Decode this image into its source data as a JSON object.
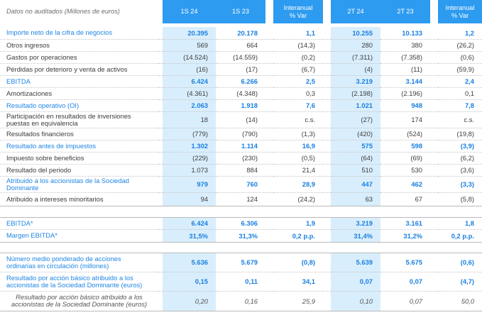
{
  "header": {
    "label": "Datos no auditados (Millones de euros)",
    "col_1s24": "1S 24",
    "col_1s23": "1S 23",
    "col_var1_line1": "Interanual",
    "col_var1_line2": "% Var",
    "col_2t24": "2T 24",
    "col_2t23": "2T 23",
    "col_var2_line1": "Interanual",
    "col_var2_line2": "% Var"
  },
  "rows": [
    {
      "label": "Importe neto de la cifra de negocios",
      "v1": "20.395",
      "v2": "20.178",
      "v3": "1,1",
      "v4": "10.255",
      "v5": "10.133",
      "v6": "1,2"
    },
    {
      "label": "Otros ingresos",
      "v1": "569",
      "v2": "664",
      "v3": "(14,3)",
      "v4": "280",
      "v5": "380",
      "v6": "(26,2)"
    },
    {
      "label": "Gastos por operaciones",
      "v1": "(14.524)",
      "v2": "(14.559)",
      "v3": "(0,2)",
      "v4": "(7.311)",
      "v5": "(7.358)",
      "v6": "(0,6)"
    },
    {
      "label": "Pérdidas por deterioro y venta de activos",
      "v1": "(16)",
      "v2": "(17)",
      "v3": "(6,7)",
      "v4": "(4)",
      "v5": "(11)",
      "v6": "(59,9)"
    },
    {
      "label": "EBITDA",
      "v1": "6.424",
      "v2": "6.266",
      "v3": "2,5",
      "v4": "3.219",
      "v5": "3.144",
      "v6": "2,4"
    },
    {
      "label": "Amortizaciones",
      "v1": "(4.361)",
      "v2": "(4.348)",
      "v3": "0,3",
      "v4": "(2.198)",
      "v5": "(2.196)",
      "v6": "0,1"
    },
    {
      "label": "Resultado operativo (OI)",
      "v1": "2.063",
      "v2": "1.918",
      "v3": "7,6",
      "v4": "1.021",
      "v5": "948",
      "v6": "7,8"
    },
    {
      "label1": "Participación en resultados de inversiones",
      "label2": "puestas en equivalencia",
      "v1": "18",
      "v2": "(14)",
      "v3": "c.s.",
      "v4": "(27)",
      "v5": "174",
      "v6": "c.s."
    },
    {
      "label": "Resultados financieros",
      "v1": "(779)",
      "v2": "(790)",
      "v3": "(1,3)",
      "v4": "(420)",
      "v5": "(524)",
      "v6": "(19,8)"
    },
    {
      "label": "Resultado antes de impuestos",
      "v1": "1.302",
      "v2": "1.114",
      "v3": "16,9",
      "v4": "575",
      "v5": "598",
      "v6": "(3,9)"
    },
    {
      "label": "Impuesto sobre beneficios",
      "v1": "(229)",
      "v2": "(230)",
      "v3": "(0,5)",
      "v4": "(64)",
      "v5": "(69)",
      "v6": "(6,2)"
    },
    {
      "label": "Resultado del periodo",
      "v1": "1.073",
      "v2": "884",
      "v3": "21,4",
      "v4": "510",
      "v5": "530",
      "v6": "(3,6)"
    },
    {
      "label1": "Atribuido a los accionistas de la Sociedad",
      "label2": "Dominante",
      "v1": "979",
      "v2": "760",
      "v3": "28,9",
      "v4": "447",
      "v5": "462",
      "v6": "(3,3)"
    },
    {
      "label": "Atribuido a intereses minoritarios",
      "v1": "94",
      "v2": "124",
      "v3": "(24,2)",
      "v4": "63",
      "v5": "67",
      "v6": "(5,8)"
    },
    {
      "label": "EBITDA*",
      "v1": "6.424",
      "v2": "6.306",
      "v3": "1,9",
      "v4": "3.219",
      "v5": "3.161",
      "v6": "1,8"
    },
    {
      "label": "Margen EBITDA*",
      "v1": "31,5%",
      "v2": "31,3%",
      "v3": "0,2 p.p.",
      "v4": "31,4%",
      "v5": "31,2%",
      "v6": "0,2 p.p."
    },
    {
      "label1": "Número medio ponderado de acciones",
      "label2": "ordinarias en circulación (millones)",
      "v1": "5.636",
      "v2": "5.679",
      "v3": "(0,8)",
      "v4": "5.639",
      "v5": "5.675",
      "v6": "(0,6)"
    },
    {
      "label1": "Resultado por acción básico atribuido a los",
      "label2": "accionistas de la Sociedad Dominante (euros)",
      "v1": "0,15",
      "v2": "0,11",
      "v3": "34,1",
      "v4": "0,07",
      "v5": "0,07",
      "v6": "(4,7)"
    },
    {
      "label1": "Resultado por acción básico atribuido a los",
      "label2": "accionistas de la Sociedad Dominante (euros)",
      "v1": "0,20",
      "v2": "0,16",
      "v3": "25,9",
      "v4": "0,10",
      "v5": "0,07",
      "v6": "50,0"
    }
  ]
}
